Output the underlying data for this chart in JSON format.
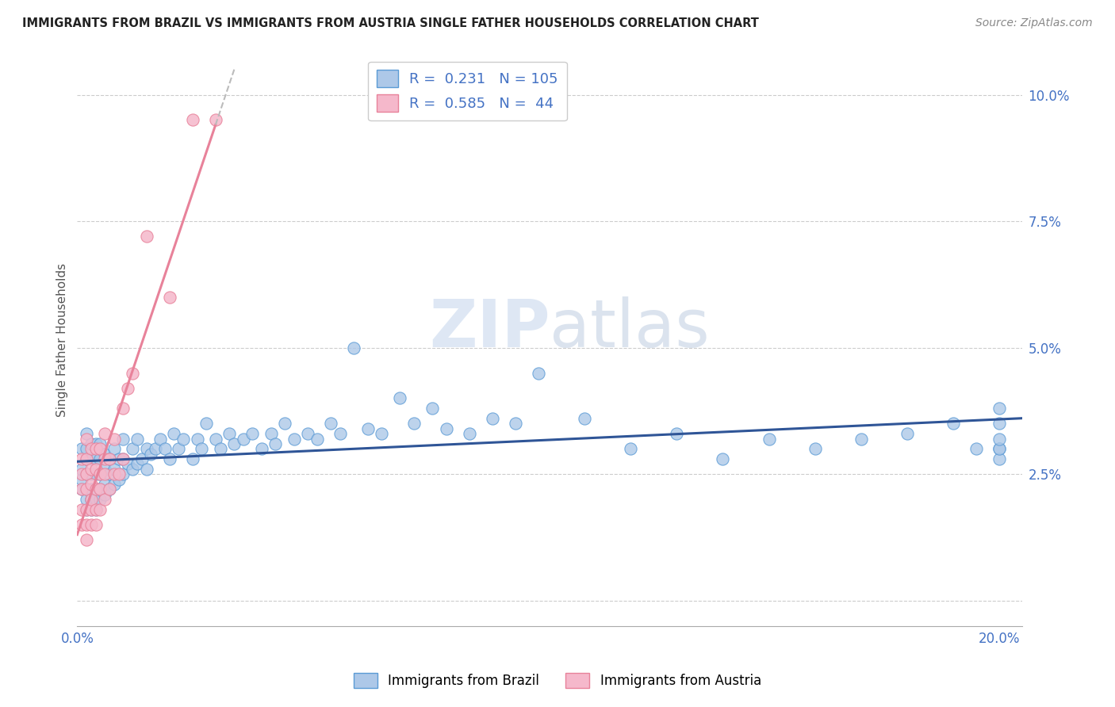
{
  "title": "IMMIGRANTS FROM BRAZIL VS IMMIGRANTS FROM AUSTRIA SINGLE FATHER HOUSEHOLDS CORRELATION CHART",
  "source": "Source: ZipAtlas.com",
  "ylabel_label": "Single Father Households",
  "xlim": [
    0.0,
    0.205
  ],
  "ylim": [
    -0.005,
    0.108
  ],
  "brazil_color": "#adc8e8",
  "austria_color": "#f5b8cb",
  "brazil_edge": "#5b9bd5",
  "austria_edge": "#e8829a",
  "brazil_line_color": "#2f5597",
  "austria_line_color": "#e8829a",
  "austria_dash_color": "#cccccc",
  "watermark_color": "#dce9f5",
  "brazil_x": [
    0.001,
    0.001,
    0.001,
    0.001,
    0.002,
    0.002,
    0.002,
    0.002,
    0.002,
    0.002,
    0.002,
    0.003,
    0.003,
    0.003,
    0.003,
    0.003,
    0.003,
    0.004,
    0.004,
    0.004,
    0.004,
    0.004,
    0.004,
    0.005,
    0.005,
    0.005,
    0.005,
    0.005,
    0.006,
    0.006,
    0.006,
    0.006,
    0.007,
    0.007,
    0.007,
    0.008,
    0.008,
    0.008,
    0.009,
    0.009,
    0.01,
    0.01,
    0.01,
    0.011,
    0.012,
    0.012,
    0.013,
    0.013,
    0.014,
    0.015,
    0.015,
    0.016,
    0.017,
    0.018,
    0.019,
    0.02,
    0.021,
    0.022,
    0.023,
    0.025,
    0.026,
    0.027,
    0.028,
    0.03,
    0.031,
    0.033,
    0.034,
    0.036,
    0.038,
    0.04,
    0.042,
    0.043,
    0.045,
    0.047,
    0.05,
    0.052,
    0.055,
    0.057,
    0.06,
    0.063,
    0.066,
    0.07,
    0.073,
    0.077,
    0.08,
    0.085,
    0.09,
    0.095,
    0.1,
    0.11,
    0.12,
    0.13,
    0.14,
    0.15,
    0.16,
    0.17,
    0.18,
    0.19,
    0.195,
    0.2,
    0.2,
    0.2,
    0.2,
    0.2,
    0.2
  ],
  "brazil_y": [
    0.022,
    0.024,
    0.026,
    0.03,
    0.018,
    0.02,
    0.022,
    0.025,
    0.028,
    0.03,
    0.033,
    0.018,
    0.02,
    0.022,
    0.025,
    0.028,
    0.031,
    0.018,
    0.02,
    0.022,
    0.025,
    0.028,
    0.031,
    0.02,
    0.022,
    0.025,
    0.028,
    0.031,
    0.021,
    0.023,
    0.026,
    0.029,
    0.022,
    0.025,
    0.028,
    0.023,
    0.026,
    0.03,
    0.024,
    0.028,
    0.025,
    0.028,
    0.032,
    0.027,
    0.026,
    0.03,
    0.027,
    0.032,
    0.028,
    0.026,
    0.03,
    0.029,
    0.03,
    0.032,
    0.03,
    0.028,
    0.033,
    0.03,
    0.032,
    0.028,
    0.032,
    0.03,
    0.035,
    0.032,
    0.03,
    0.033,
    0.031,
    0.032,
    0.033,
    0.03,
    0.033,
    0.031,
    0.035,
    0.032,
    0.033,
    0.032,
    0.035,
    0.033,
    0.05,
    0.034,
    0.033,
    0.04,
    0.035,
    0.038,
    0.034,
    0.033,
    0.036,
    0.035,
    0.045,
    0.036,
    0.03,
    0.033,
    0.028,
    0.032,
    0.03,
    0.032,
    0.033,
    0.035,
    0.03,
    0.038,
    0.03,
    0.028,
    0.03,
    0.032,
    0.035
  ],
  "austria_x": [
    0.001,
    0.001,
    0.001,
    0.001,
    0.001,
    0.002,
    0.002,
    0.002,
    0.002,
    0.002,
    0.002,
    0.002,
    0.003,
    0.003,
    0.003,
    0.003,
    0.003,
    0.003,
    0.004,
    0.004,
    0.004,
    0.004,
    0.004,
    0.005,
    0.005,
    0.005,
    0.005,
    0.006,
    0.006,
    0.006,
    0.006,
    0.007,
    0.007,
    0.008,
    0.008,
    0.009,
    0.01,
    0.01,
    0.011,
    0.012,
    0.015,
    0.02,
    0.025,
    0.03
  ],
  "austria_y": [
    0.015,
    0.018,
    0.022,
    0.025,
    0.028,
    0.012,
    0.015,
    0.018,
    0.022,
    0.025,
    0.028,
    0.032,
    0.015,
    0.018,
    0.02,
    0.023,
    0.026,
    0.03,
    0.015,
    0.018,
    0.022,
    0.026,
    0.03,
    0.018,
    0.022,
    0.025,
    0.03,
    0.02,
    0.025,
    0.028,
    0.033,
    0.022,
    0.028,
    0.025,
    0.032,
    0.025,
    0.028,
    0.038,
    0.042,
    0.045,
    0.072,
    0.06,
    0.095,
    0.095
  ]
}
